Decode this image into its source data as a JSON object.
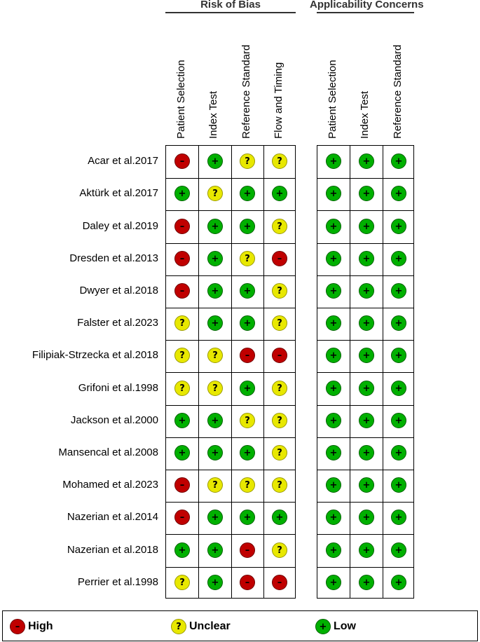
{
  "groups": [
    {
      "title": "Risk of Bias",
      "columns": [
        "Patient Selection",
        "Index Test",
        "Reference Standard",
        "Flow and Timing"
      ]
    },
    {
      "title": "Applicability Concerns",
      "columns": [
        "Patient Selection",
        "Index Test",
        "Reference Standard"
      ]
    }
  ],
  "rows": [
    {
      "study": "Acar et al.2017",
      "rob": [
        "high",
        "low",
        "unclear",
        "unclear"
      ],
      "app": [
        "low",
        "low",
        "low"
      ]
    },
    {
      "study": "Aktürk et al.2017",
      "rob": [
        "low",
        "unclear",
        "low",
        "low"
      ],
      "app": [
        "low",
        "low",
        "low"
      ]
    },
    {
      "study": "Daley et al.2019",
      "rob": [
        "high",
        "low",
        "low",
        "unclear"
      ],
      "app": [
        "low",
        "low",
        "low"
      ]
    },
    {
      "study": "Dresden et al.2013",
      "rob": [
        "high",
        "low",
        "unclear",
        "high"
      ],
      "app": [
        "low",
        "low",
        "low"
      ]
    },
    {
      "study": "Dwyer et al.2018",
      "rob": [
        "high",
        "low",
        "low",
        "unclear"
      ],
      "app": [
        "low",
        "low",
        "low"
      ]
    },
    {
      "study": "Falster et al.2023",
      "rob": [
        "unclear",
        "low",
        "low",
        "unclear"
      ],
      "app": [
        "low",
        "low",
        "low"
      ]
    },
    {
      "study": "Filipiak-Strzecka et al.2018",
      "rob": [
        "unclear",
        "unclear",
        "high",
        "high"
      ],
      "app": [
        "low",
        "low",
        "low"
      ]
    },
    {
      "study": "Grifoni et al.1998",
      "rob": [
        "unclear",
        "unclear",
        "low",
        "unclear"
      ],
      "app": [
        "low",
        "low",
        "low"
      ]
    },
    {
      "study": "Jackson et al.2000",
      "rob": [
        "low",
        "low",
        "unclear",
        "unclear"
      ],
      "app": [
        "low",
        "low",
        "low"
      ]
    },
    {
      "study": "Mansencal et al.2008",
      "rob": [
        "low",
        "low",
        "low",
        "unclear"
      ],
      "app": [
        "low",
        "low",
        "low"
      ]
    },
    {
      "study": "Mohamed et al.2023",
      "rob": [
        "high",
        "unclear",
        "unclear",
        "unclear"
      ],
      "app": [
        "low",
        "low",
        "low"
      ]
    },
    {
      "study": "Nazerian et al.2014",
      "rob": [
        "high",
        "low",
        "low",
        "low"
      ],
      "app": [
        "low",
        "low",
        "low"
      ]
    },
    {
      "study": "Nazerian et al.2018",
      "rob": [
        "low",
        "low",
        "high",
        "unclear"
      ],
      "app": [
        "low",
        "low",
        "low"
      ]
    },
    {
      "study": "Perrier et al.1998",
      "rob": [
        "unclear",
        "low",
        "high",
        "high"
      ],
      "app": [
        "low",
        "low",
        "low"
      ]
    }
  ],
  "symbols": {
    "low": "+",
    "high": "–",
    "unclear": "?"
  },
  "colors": {
    "low": "#00b000",
    "high": "#c00000",
    "unclear": "#e8e800"
  },
  "legend": [
    {
      "key": "high",
      "label": "High"
    },
    {
      "key": "unclear",
      "label": "Unclear"
    },
    {
      "key": "low",
      "label": "Low"
    }
  ]
}
